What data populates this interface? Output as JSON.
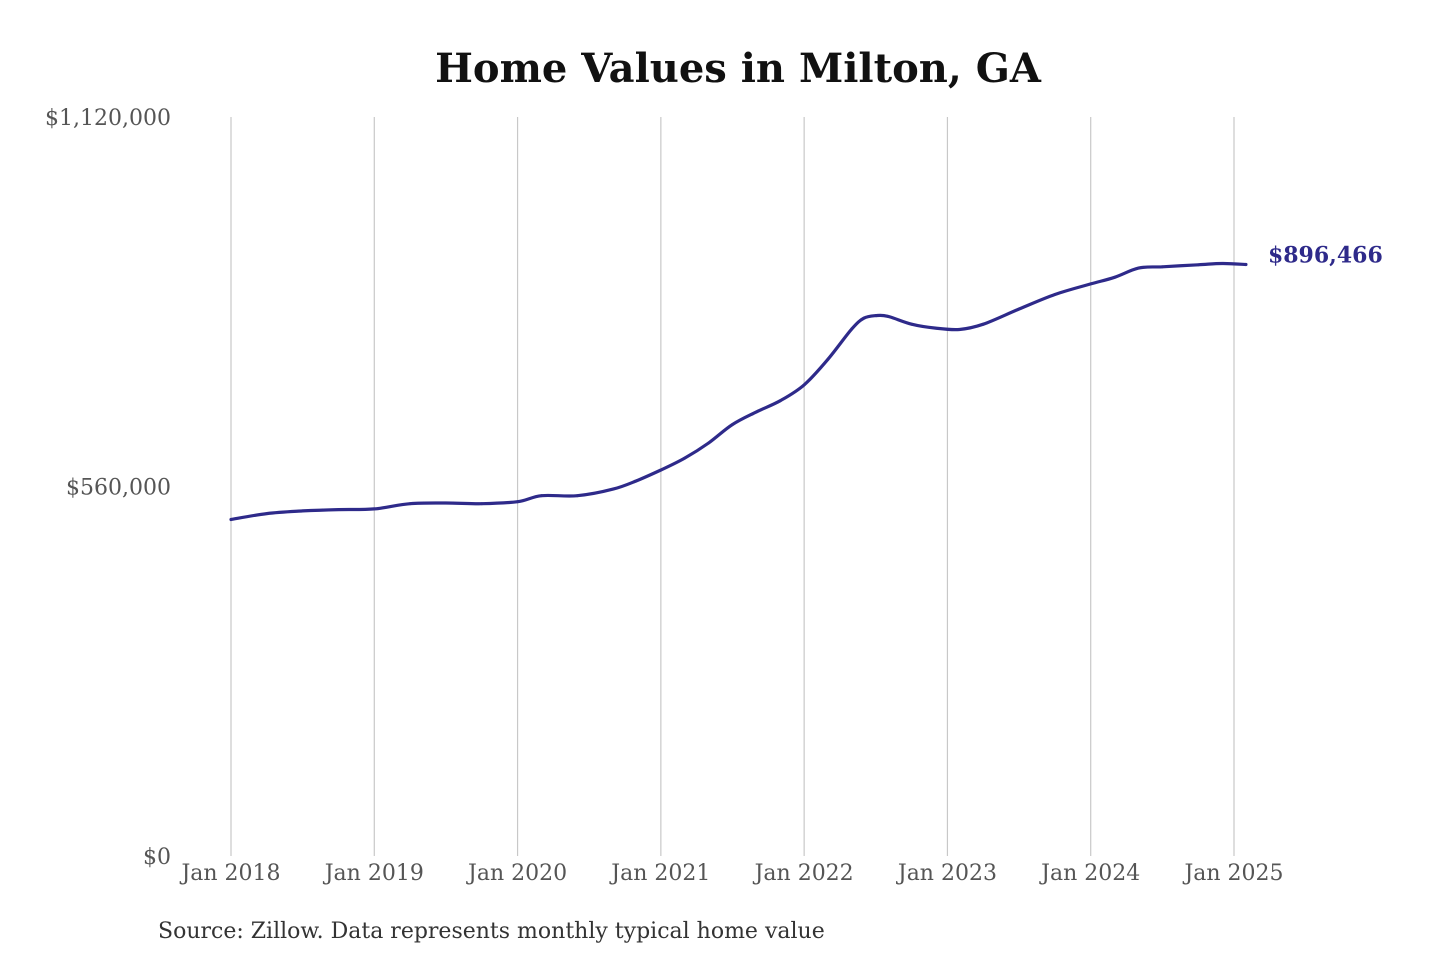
{
  "chart_data": {
    "type": "line",
    "title": "Home Values in Milton, GA",
    "xlabel": "",
    "ylabel": "",
    "ylim": [
      0,
      1120000
    ],
    "y_ticks": [
      {
        "value": 0,
        "label": "$0"
      },
      {
        "value": 560000,
        "label": "$560,000"
      },
      {
        "value": 1120000,
        "label": "$1,120,000"
      }
    ],
    "x_ticks": [
      {
        "date": "2018-01",
        "label": "Jan 2018"
      },
      {
        "date": "2019-01",
        "label": "Jan 2019"
      },
      {
        "date": "2020-01",
        "label": "Jan 2020"
      },
      {
        "date": "2021-01",
        "label": "Jan 2021"
      },
      {
        "date": "2022-01",
        "label": "Jan 2022"
      },
      {
        "date": "2023-01",
        "label": "Jan 2023"
      },
      {
        "date": "2024-01",
        "label": "Jan 2024"
      },
      {
        "date": "2025-01",
        "label": "Jan 2025"
      }
    ],
    "grid": "vertical",
    "series": [
      {
        "color": "#2e2a8a",
        "end_label": "$896,466",
        "points": [
          {
            "x": "2018-01",
            "y": 510000
          },
          {
            "x": "2018-04",
            "y": 519000
          },
          {
            "x": "2018-07",
            "y": 523000
          },
          {
            "x": "2018-10",
            "y": 525000
          },
          {
            "x": "2019-01",
            "y": 526000
          },
          {
            "x": "2019-04",
            "y": 534000
          },
          {
            "x": "2019-07",
            "y": 535000
          },
          {
            "x": "2019-10",
            "y": 534000
          },
          {
            "x": "2020-01",
            "y": 537000
          },
          {
            "x": "2020-03",
            "y": 546000
          },
          {
            "x": "2020-06",
            "y": 546000
          },
          {
            "x": "2020-09",
            "y": 556000
          },
          {
            "x": "2020-11",
            "y": 569000
          },
          {
            "x": "2021-01",
            "y": 585000
          },
          {
            "x": "2021-03",
            "y": 603000
          },
          {
            "x": "2021-05",
            "y": 626000
          },
          {
            "x": "2021-07",
            "y": 654000
          },
          {
            "x": "2021-09",
            "y": 673000
          },
          {
            "x": "2021-11",
            "y": 690000
          },
          {
            "x": "2022-01",
            "y": 714000
          },
          {
            "x": "2022-03",
            "y": 753000
          },
          {
            "x": "2022-05",
            "y": 799000
          },
          {
            "x": "2022-06",
            "y": 815000
          },
          {
            "x": "2022-07",
            "y": 819000
          },
          {
            "x": "2022-08",
            "y": 818000
          },
          {
            "x": "2022-10",
            "y": 806000
          },
          {
            "x": "2022-12",
            "y": 800000
          },
          {
            "x": "2023-02",
            "y": 798000
          },
          {
            "x": "2023-04",
            "y": 806000
          },
          {
            "x": "2023-07",
            "y": 829000
          },
          {
            "x": "2023-10",
            "y": 851000
          },
          {
            "x": "2024-01",
            "y": 867000
          },
          {
            "x": "2024-03",
            "y": 877000
          },
          {
            "x": "2024-05",
            "y": 891000
          },
          {
            "x": "2024-07",
            "y": 893000
          },
          {
            "x": "2024-10",
            "y": 896000
          },
          {
            "x": "2024-12",
            "y": 898000
          },
          {
            "x": "2025-02",
            "y": 896466
          }
        ]
      }
    ]
  },
  "source_note": "Source: Zillow. Data represents monthly typical home value"
}
